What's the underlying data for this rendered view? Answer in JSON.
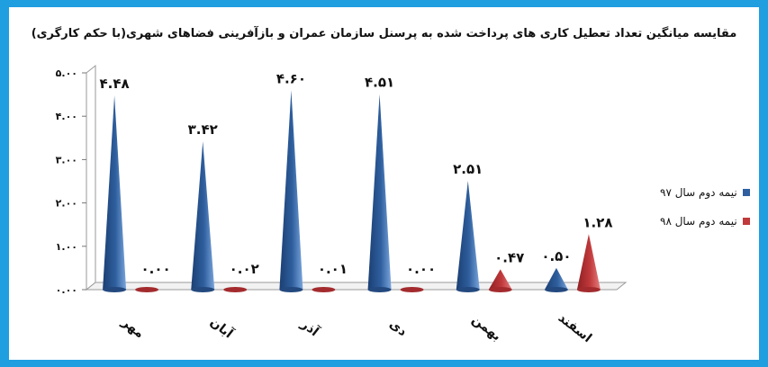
{
  "chart_data": {
    "type": "bar",
    "title": "مقایسه میانگین تعداد تعطیل کاری های پرداخت شده به پرسنل سازمان عمران و بازآفرینی فضاهای شهری(با حکم کارگری)",
    "categories": [
      "مهر",
      "آبان",
      "آذر",
      "دی",
      "بهمن",
      "اسفند"
    ],
    "series": [
      {
        "name": "نیمه دوم سال ۹۷",
        "values": [
          4.48,
          3.42,
          4.6,
          4.51,
          2.51,
          0.5
        ],
        "labels": [
          "۴.۴۸",
          "۳.۴۲",
          "۴.۶۰",
          "۴.۵۱",
          "۲.۵۱",
          "۰.۵۰"
        ],
        "color": "#2f5f9e"
      },
      {
        "name": "نیمه دوم سال ۹۸",
        "values": [
          0.0,
          0.02,
          0.01,
          0.0,
          0.47,
          1.28
        ],
        "labels": [
          "۰.۰۰",
          "۰.۰۲",
          "۰.۰۱",
          "۰.۰۰",
          "۰.۴۷",
          "۱.۲۸"
        ],
        "color": "#c0393b"
      }
    ],
    "ylim": [
      0,
      5
    ],
    "yticks": [
      0,
      1,
      2,
      3,
      4,
      5
    ],
    "ytick_labels": [
      "۰.۰۰",
      "۱.۰۰",
      "۲.۰۰",
      "۳.۰۰",
      "۴.۰۰",
      "۵.۰۰"
    ],
    "grid": false,
    "legend": "right"
  }
}
